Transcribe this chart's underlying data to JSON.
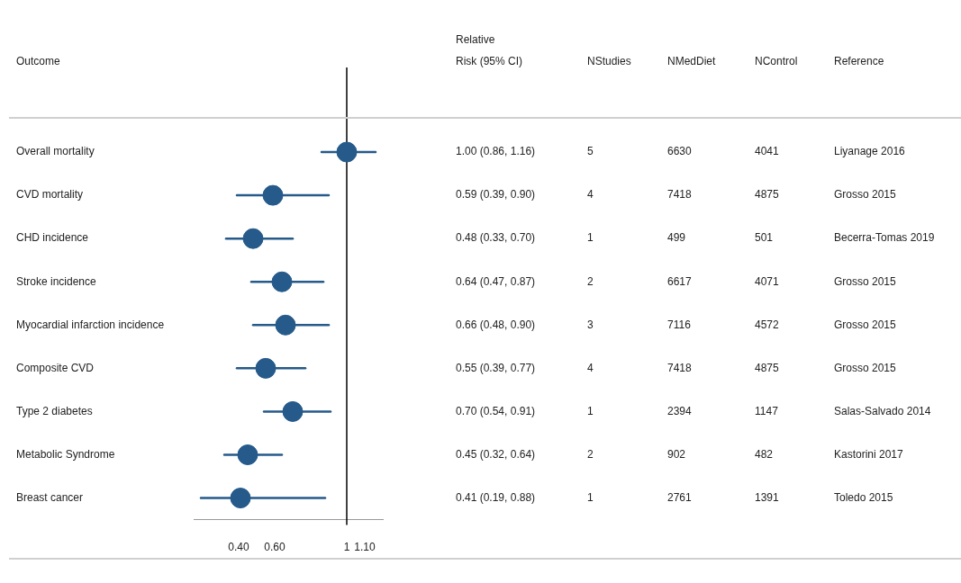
{
  "chart_data": {
    "type": "scatter",
    "orientation": "horizontal",
    "categories": [
      "Overall mortality",
      "CVD mortality",
      "CHD incidence",
      "Stroke incidence",
      "Myocardial infarction incidence",
      "Composite CVD",
      "Type 2 diabetes",
      "Metabolic Syndrome",
      "Breast cancer"
    ],
    "series": [
      {
        "color": "#255a8a",
        "values": [
          1.0,
          0.59,
          0.48,
          0.64,
          0.66,
          0.55,
          0.7,
          0.45,
          0.41
        ],
        "errors": [
          [
            0.86,
            1.16
          ],
          [
            0.39,
            0.9
          ],
          [
            0.33,
            0.7
          ],
          [
            0.47,
            0.87
          ],
          [
            0.48,
            0.9
          ],
          [
            0.39,
            0.77
          ],
          [
            0.54,
            0.91
          ],
          [
            0.32,
            0.64
          ],
          [
            0.19,
            0.88
          ]
        ],
        "value_labels": [
          "1.00 (0.86, 1.16)",
          "0.59 (0.39, 0.90)",
          "0.48 (0.33, 0.70)",
          "0.64 (0.47, 0.87)",
          "0.66 (0.48, 0.90)",
          "0.55 (0.39, 0.77)",
          "0.70 (0.54, 0.91)",
          "0.45 (0.32, 0.64)",
          "0.41 (0.19, 0.88)"
        ]
      }
    ],
    "marker": "circle",
    "grid": false,
    "legend": false,
    "xlim": [
      0.15,
      1.2
    ],
    "xticks": [
      {
        "value": 0.4,
        "label": "0.40"
      },
      {
        "value": 0.6,
        "label": "0.60"
      },
      1,
      {
        "value": 1.1,
        "label": "1.10"
      }
    ],
    "ref_lines": [
      {
        "axis": "x",
        "value": 1,
        "color": "#000000"
      }
    ],
    "annotations": [
      "Outcome",
      "Relative\nRisk (95% CI)",
      "NStudies",
      "NMedDiet",
      "NControl",
      "Reference",
      "5",
      "6630",
      "4041",
      "Liyanage 2016",
      "4",
      "7418",
      "4875",
      "Grosso 2015",
      "1",
      "499",
      "501",
      "Becerra-Tomas 2019",
      "2",
      "6617",
      "4071",
      "Grosso 2015",
      "3",
      "7116",
      "4572",
      "Grosso 2015",
      "4",
      "7418",
      "4875",
      "Grosso 2015",
      "1",
      "2394",
      "1147",
      "Salas-Salvado 2014",
      "2",
      "902",
      "482",
      "Kastorini 2017",
      "1",
      "2761",
      "1391",
      "Toledo 2015"
    ]
  }
}
